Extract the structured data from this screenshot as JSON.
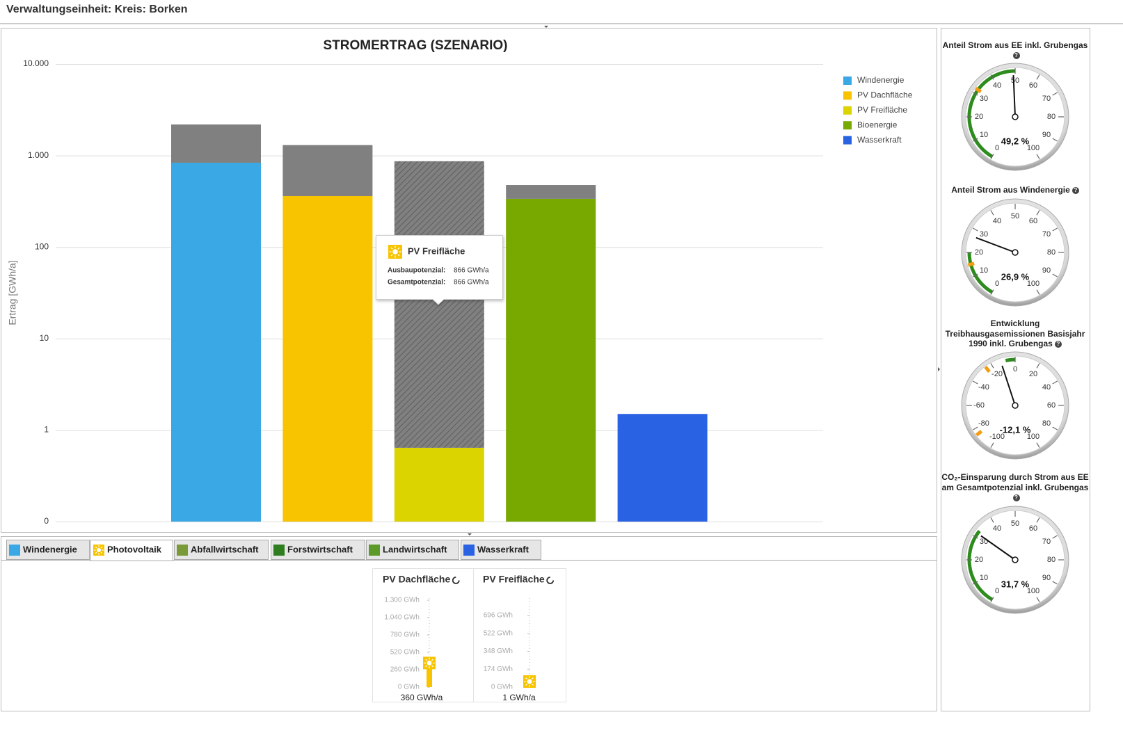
{
  "header": {
    "title": "Verwaltungseinheit: Kreis: Borken"
  },
  "chart_data": {
    "type": "bar",
    "title": "STROMERTRAG (SZENARIO)",
    "y_label": "Ertrag [GWh/a]",
    "log_scale": true,
    "categories": [
      "Windenergie",
      "PV Dachfläche",
      "PV Freifläche",
      "Bioenergie",
      "Wasserkraft"
    ],
    "colors": [
      "#3aa8e4",
      "#f8c400",
      "#dcd400",
      "#78a900",
      "#2a62e4"
    ],
    "values": [
      834,
      360,
      0.64,
      336,
      1.5
    ],
    "remaining": [
      1350,
      940,
      865,
      140,
      null
    ],
    "remaining_color": "#808080",
    "ylim": [
      0.1,
      10000
    ],
    "yticks": [
      {
        "value": 0.1,
        "label": "0"
      },
      1,
      10,
      100,
      {
        "value": 1000,
        "label": "1.000"
      },
      {
        "value": 10000,
        "label": "10.000"
      }
    ],
    "grid": true,
    "legend": "right"
  },
  "tooltip": {
    "title": "PV Freifläche",
    "rows": [
      {
        "label": "Ausbaupotenzial:",
        "value": "866 GWh/a"
      },
      {
        "label": "Gesamtpotenzial:",
        "value": "866 GWh/a"
      }
    ]
  },
  "tabs": {
    "items": [
      "Windenergie",
      "Photovoltaik",
      "Abfallwirtschaft",
      "Forstwirtschaft",
      "Landwirtschaft",
      "Wasserkraft"
    ],
    "active": 1
  },
  "sliders": [
    {
      "title": "PV Dachfläche",
      "ticks": [
        {
          "value": 1300,
          "label": "1.300 GWh"
        },
        {
          "value": 1040,
          "label": "1.040 GWh"
        },
        {
          "value": 780,
          "label": "780 GWh"
        },
        {
          "value": 520,
          "label": "520 GWh"
        },
        {
          "value": 260,
          "label": "260 GWh"
        },
        {
          "value": 0,
          "label": "0 GWh"
        }
      ],
      "value": 360,
      "value_label": "360 GWh/a"
    },
    {
      "title": "PV Freifläche",
      "ticks": [
        {
          "value": 696,
          "label": "696 GWh"
        },
        {
          "value": 522,
          "label": "522 GWh"
        },
        {
          "value": 348,
          "label": "348 GWh"
        },
        {
          "value": 174,
          "label": "174 GWh"
        },
        {
          "value": 0,
          "label": "0 GWh"
        }
      ],
      "value": 1,
      "value_label": "1 GWh/a"
    }
  ],
  "gauges": [
    {
      "title": "Anteil Strom aus EE inkl. Grubengas",
      "ticks": [
        0,
        10,
        20,
        30,
        40,
        50,
        60,
        70,
        80,
        90,
        100
      ],
      "value": 49.2,
      "value_label": "49,2 %",
      "band": [
        0,
        50
      ],
      "targets": [
        32
      ]
    },
    {
      "title": "Anteil Strom aus Windenergie",
      "ticks": [
        0,
        10,
        20,
        30,
        40,
        50,
        60,
        70,
        80,
        90,
        100
      ],
      "value": 26.9,
      "value_label": "26,9 %",
      "band": [
        0,
        20
      ],
      "targets": [
        15
      ]
    },
    {
      "title": "Entwicklung Treibhausgasemissionen Basisjahr 1990 inkl. Grubengas",
      "ticks": [
        -100,
        -80,
        -60,
        -40,
        -20,
        0,
        20,
        40,
        60,
        80,
        100
      ],
      "value": -12.1,
      "value_label": "-12,1 %",
      "band": [
        -8,
        0
      ],
      "targets": [
        -25,
        -85
      ]
    },
    {
      "title": "CO₂-Einsparung durch Strom aus EE am Gesamtpotenzial inkl. Grubengas",
      "ticks": [
        0,
        10,
        20,
        30,
        40,
        50,
        60,
        70,
        80,
        90,
        100
      ],
      "value": 31.7,
      "value_label": "31,7 %",
      "band": [
        0,
        33
      ],
      "targets": []
    }
  ],
  "gauge_colors": {
    "band": "#2e8b1e",
    "target": "#f39c12"
  }
}
